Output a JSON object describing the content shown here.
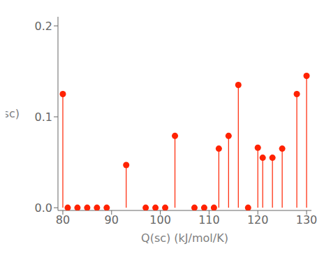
{
  "chart_data": {
    "type": "stem",
    "x": [
      80,
      81,
      83,
      85,
      87,
      89,
      93,
      97,
      99,
      101,
      103,
      107,
      109,
      111,
      112,
      114,
      116,
      118,
      120,
      121,
      123,
      125,
      128,
      130
    ],
    "values": [
      0.125,
      0.0,
      0.0,
      0.0,
      0.0,
      0.0,
      0.047,
      0.0,
      0.0,
      0.0,
      0.079,
      0.0,
      0.0,
      0.0,
      0.065,
      0.079,
      0.135,
      0.0,
      0.066,
      0.055,
      0.055,
      0.065,
      0.125,
      0.145
    ],
    "color": "#ff2200",
    "marker": "circle",
    "xlim": [
      79,
      131
    ],
    "ylim": [
      -0.003,
      0.21
    ],
    "xticks": [
      80,
      90,
      100,
      110,
      120,
      130
    ],
    "yticks": [
      {
        "value": 0.0,
        "label": "0.0"
      },
      0.1,
      0.2
    ],
    "xlabel": "Q(sc) (kJ/mol/K)",
    "ylabel": "p(sc)",
    "grid": false
  }
}
